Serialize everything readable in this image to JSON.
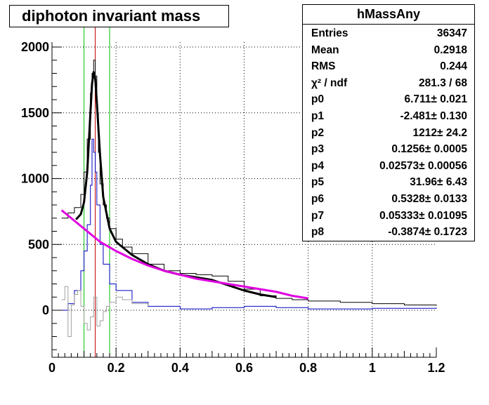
{
  "chart_data": {
    "type": "line",
    "title": "diphoton invariant mass",
    "xlim": [
      0,
      1.2
    ],
    "ylim": [
      -350,
      2100
    ],
    "x_ticks": [
      "0",
      "0.2",
      "0.4",
      "0.6",
      "0.8",
      "1",
      "1.2"
    ],
    "y_ticks": [
      "0",
      "500",
      "1000",
      "1500",
      "2000"
    ],
    "grid": true,
    "vertical_markers": [
      {
        "x": 0.1,
        "color": "#00c000"
      },
      {
        "x": 0.135,
        "color": "#c00000"
      },
      {
        "x": 0.18,
        "color": "#00c000"
      }
    ],
    "series": [
      {
        "style": "histogram",
        "color": "#000000",
        "x": [
          0.03,
          0.05,
          0.07,
          0.09,
          0.1,
          0.11,
          0.12,
          0.125,
          0.13,
          0.135,
          0.14,
          0.145,
          0.15,
          0.16,
          0.17,
          0.18,
          0.2,
          0.22,
          0.25,
          0.3,
          0.35,
          0.4,
          0.45,
          0.5,
          0.55,
          0.6,
          0.65,
          0.7,
          0.75,
          0.8,
          0.9,
          1.0,
          1.1,
          1.2
        ],
        "y": [
          700,
          740,
          780,
          880,
          1050,
          1300,
          1650,
          1800,
          1900,
          1780,
          1500,
          1200,
          960,
          800,
          700,
          620,
          540,
          480,
          430,
          350,
          300,
          280,
          270,
          260,
          220,
          160,
          110,
          90,
          80,
          70,
          60,
          50,
          40,
          35
        ]
      },
      {
        "style": "histogram",
        "color": "#0000c0",
        "x": [
          0.03,
          0.05,
          0.07,
          0.09,
          0.1,
          0.11,
          0.12,
          0.125,
          0.13,
          0.135,
          0.14,
          0.15,
          0.16,
          0.18,
          0.2,
          0.25,
          0.3,
          0.4,
          0.5,
          0.6,
          0.7,
          0.8,
          1.0,
          1.2
        ],
        "y": [
          0,
          50,
          150,
          300,
          450,
          650,
          950,
          1300,
          1200,
          1050,
          800,
          500,
          350,
          200,
          150,
          60,
          30,
          10,
          20,
          30,
          20,
          10,
          15,
          20
        ]
      },
      {
        "style": "histogram",
        "color": "#a0a0a0",
        "x": [
          0.03,
          0.04,
          0.05,
          0.06,
          0.07,
          0.08,
          0.09,
          0.1,
          0.11,
          0.12,
          0.13,
          0.14,
          0.15,
          0.16,
          0.17,
          0.18,
          0.2,
          0.22,
          0.25,
          0.3
        ],
        "y": [
          80,
          180,
          -200,
          40,
          120,
          150,
          30,
          -100,
          -150,
          -50,
          100,
          -120,
          -80,
          -10,
          30,
          60,
          100,
          80,
          50,
          20
        ]
      },
      {
        "style": "curve",
        "color": "#000000",
        "x": [
          0.075,
          0.09,
          0.1,
          0.11,
          0.12,
          0.125,
          0.13,
          0.135,
          0.14,
          0.15,
          0.16,
          0.18,
          0.2,
          0.25,
          0.3,
          0.35,
          0.4,
          0.45,
          0.5,
          0.55,
          0.6,
          0.65,
          0.7
        ],
        "y": [
          690,
          730,
          820,
          1050,
          1500,
          1720,
          1810,
          1760,
          1580,
          1180,
          860,
          620,
          520,
          420,
          350,
          300,
          270,
          250,
          230,
          190,
          150,
          120,
          100
        ]
      },
      {
        "style": "curve",
        "color": "#e000e0",
        "x": [
          0.03,
          0.05,
          0.07,
          0.09,
          0.1,
          0.12,
          0.15,
          0.2,
          0.25,
          0.3,
          0.35,
          0.4,
          0.45,
          0.5,
          0.55,
          0.6,
          0.65,
          0.7,
          0.75,
          0.8
        ],
        "y": [
          760,
          720,
          680,
          640,
          620,
          580,
          520,
          450,
          390,
          340,
          300,
          270,
          240,
          220,
          200,
          180,
          160,
          140,
          110,
          90
        ]
      }
    ]
  },
  "stats": {
    "name": "hMassAny",
    "rows": [
      {
        "key": "Entries",
        "value": "36347"
      },
      {
        "key": "Mean",
        "value": "0.2918"
      },
      {
        "key": "RMS",
        "value": "0.244"
      },
      {
        "key": "χ² / ndf",
        "value": "281.3 / 68"
      },
      {
        "key": "p0",
        "value": "6.711± 0.021"
      },
      {
        "key": "p1",
        "value": "-2.481± 0.130"
      },
      {
        "key": "p2",
        "value": "1212± 24.2"
      },
      {
        "key": "p3",
        "value": "0.1256± 0.0005"
      },
      {
        "key": "p4",
        "value": "0.02573± 0.00056"
      },
      {
        "key": "p5",
        "value": "31.96± 6.43"
      },
      {
        "key": "p6",
        "value": "0.5328± 0.0133"
      },
      {
        "key": "p7",
        "value": "0.05333± 0.01095"
      },
      {
        "key": "p8",
        "value": "-0.3874± 0.1723"
      }
    ]
  }
}
